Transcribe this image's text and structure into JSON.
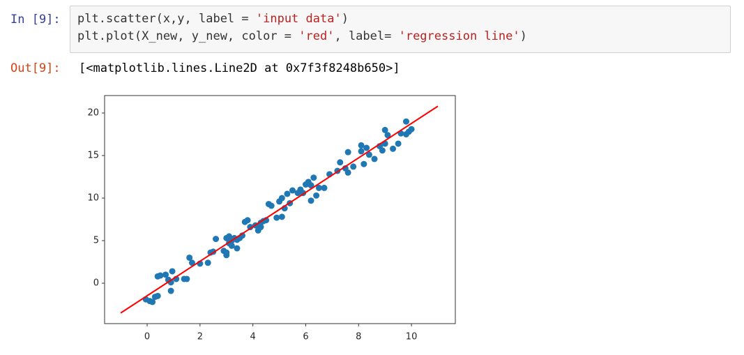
{
  "input_cell": {
    "prompt": "In [9]:",
    "lines": [
      [
        {
          "text": "plt.scatter(x,y, label = ",
          "color": "#333333"
        },
        {
          "text": "'input data'",
          "color": "#ba2121"
        },
        {
          "text": ")",
          "color": "#333333"
        }
      ],
      [
        {
          "text": "plt.plot(X_new, y_new, color = ",
          "color": "#333333"
        },
        {
          "text": "'red'",
          "color": "#ba2121"
        },
        {
          "text": ", label= ",
          "color": "#333333"
        },
        {
          "text": "'regression line'",
          "color": "#ba2121"
        },
        {
          "text": ")",
          "color": "#333333"
        }
      ]
    ]
  },
  "output_cell": {
    "prompt": "Out[9]:",
    "text": "[<matplotlib.lines.Line2D at 0x7f3f8248b650>]"
  },
  "chart_data": {
    "type": "scatter",
    "xlim": [
      -1.61,
      11.66
    ],
    "ylim": [
      -4.75,
      22.05
    ],
    "xticks": [
      0,
      2,
      4,
      6,
      8,
      10
    ],
    "yticks": [
      0,
      5,
      10,
      15,
      20
    ],
    "series": [
      {
        "type": "scatter",
        "color": "#1f77b4",
        "x": [
          -0.05,
          0.1,
          0.2,
          0.3,
          0.4,
          0.4,
          0.5,
          0.7,
          0.8,
          0.9,
          0.9,
          0.95,
          1.1,
          1.4,
          1.5,
          1.6,
          1.7,
          2.0,
          2.3,
          2.4,
          2.5,
          2.6,
          2.9,
          3.0,
          3.0,
          3.0,
          3.1,
          3.1,
          3.2,
          3.2,
          3.3,
          3.4,
          3.4,
          3.5,
          3.6,
          3.7,
          3.8,
          3.9,
          4.1,
          4.2,
          4.3,
          4.3,
          4.4,
          4.5,
          4.6,
          4.7,
          4.9,
          5.0,
          5.1,
          5.1,
          5.2,
          5.3,
          5.4,
          5.5,
          5.7,
          5.8,
          5.9,
          6.0,
          6.1,
          6.2,
          6.2,
          6.3,
          6.4,
          6.5,
          6.7,
          6.9,
          7.2,
          7.3,
          7.5,
          7.6,
          7.6,
          7.8,
          8.1,
          8.1,
          8.2,
          8.3,
          8.4,
          8.6,
          8.8,
          8.9,
          9.0,
          9.0,
          9.1,
          9.3,
          9.5,
          9.6,
          9.8,
          9.8,
          10.0,
          9.9
        ],
        "y": [
          -1.9,
          -2.1,
          -2.2,
          -1.6,
          -1.5,
          0.8,
          0.9,
          1.0,
          0.4,
          0.1,
          -0.9,
          1.4,
          0.5,
          0.5,
          0.5,
          3.0,
          2.4,
          2.3,
          2.4,
          3.6,
          3.7,
          5.2,
          3.8,
          5.3,
          3.3,
          3.6,
          5.5,
          4.7,
          5.0,
          4.4,
          5.3,
          4.1,
          5.1,
          5.3,
          5.6,
          7.2,
          7.4,
          6.6,
          6.8,
          6.2,
          7.1,
          6.6,
          7.3,
          7.4,
          9.3,
          9.1,
          7.7,
          9.6,
          7.8,
          10.0,
          8.8,
          10.5,
          9.4,
          10.9,
          10.6,
          11.0,
          10.6,
          11.6,
          11.9,
          11.5,
          9.7,
          12.4,
          10.3,
          11.2,
          11.2,
          12.8,
          13.2,
          14.2,
          13.5,
          13.0,
          15.4,
          13.7,
          15.5,
          16.2,
          14.0,
          15.9,
          15.1,
          14.6,
          16.1,
          15.6,
          16.4,
          18.0,
          17.4,
          15.8,
          16.4,
          17.6,
          17.5,
          19.0,
          18.1,
          17.8
        ]
      },
      {
        "type": "line",
        "color": "#ff0000",
        "x": [
          -1,
          11
        ],
        "y": [
          -3.5,
          20.8
        ]
      }
    ]
  }
}
